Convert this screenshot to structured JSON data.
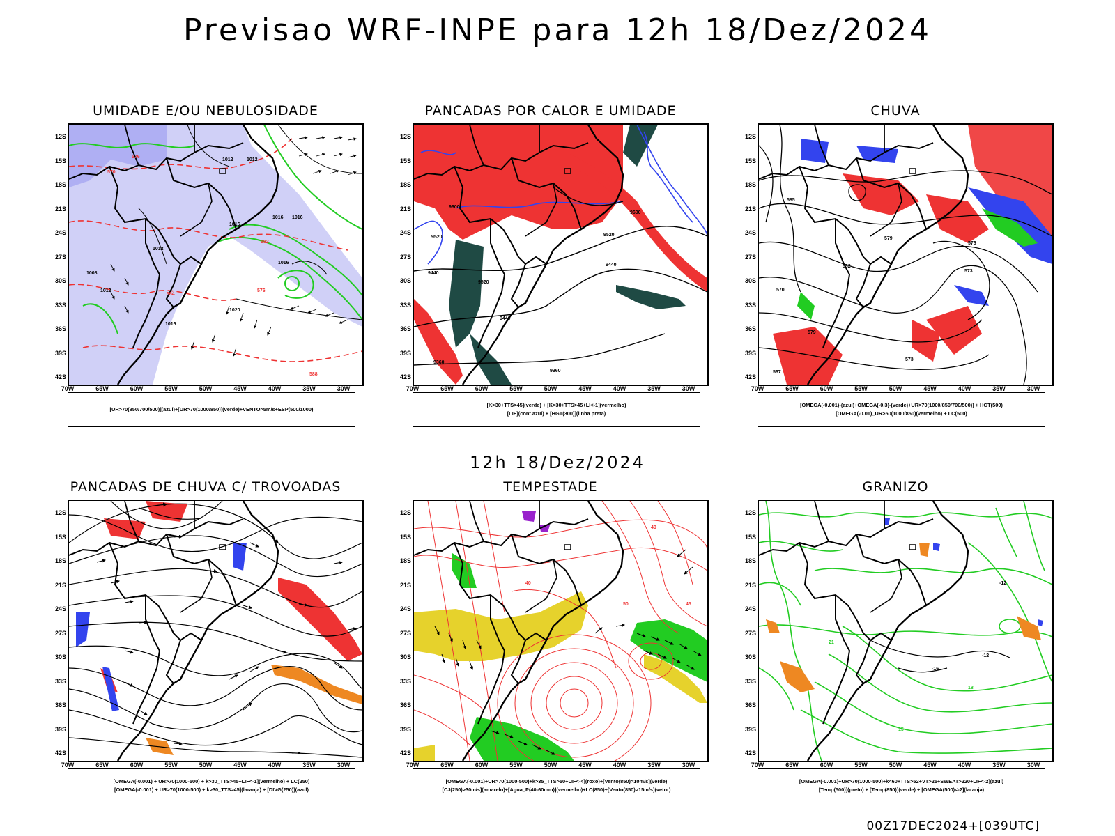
{
  "title": "Previsao WRF-INPE  para 12h 18/Dez/2024",
  "subtitle": "12h 18/Dez/2024",
  "footer": "00Z17DEC2024+[039UTC]",
  "axes": {
    "lat_labels": [
      "12S",
      "15S",
      "18S",
      "21S",
      "24S",
      "27S",
      "30S",
      "33S",
      "36S",
      "39S",
      "42S"
    ],
    "lon_labels": [
      "70W",
      "65W",
      "60W",
      "55W",
      "50W",
      "45W",
      "40W",
      "35W",
      "30W"
    ]
  },
  "colors": {
    "azul": "#3344ee",
    "verde": "#22cc22",
    "vermelho": "#ee3333",
    "amarelo": "#e6d22c",
    "laranja": "#ee8822",
    "roxo": "#9922cc",
    "shade_blue": "#9999ee",
    "dark_teal": "#1f4a44"
  },
  "panels": [
    {
      "title": "UMIDADE E/OU NEBULOSIDADE",
      "legend": [
        "[UR>70(850/700/500)](azul)+[UR>70(1000/850)](verde)+VENTO>5m/s+ESP(500/1000)"
      ],
      "contour_labels": [
        "1012",
        "1012",
        "1016",
        "1016",
        "1016",
        "1016",
        "1020",
        "1012",
        "1008",
        "1012",
        "1016",
        "576",
        "570",
        "564",
        "582",
        "576",
        "588"
      ]
    },
    {
      "title": "PANCADAS POR CALOR E UMIDADE",
      "legend": [
        "[K>30+TTS>45](verde)  +  [K>30+TTS>45+LI<-1](vermelho)",
        "[LIF](cont.azul)  +  [HGT(300)](linha preta)"
      ],
      "contour_labels": [
        "9600",
        "9520",
        "9600",
        "9520",
        "9440",
        "9440",
        "9360",
        "9360",
        "9520",
        "9440"
      ]
    },
    {
      "title": "CHUVA",
      "legend": [
        "[OMEGA(-0.001)-(azul)+OMEGA(-0.3)-(verde)+UR>70(1000/850/700/500)]  +  HGT(500)",
        "[OMEGA(-0.01)_UR>50(1000/850)(vermelho)  +  LC(500)"
      ],
      "contour_labels": [
        "585",
        "579",
        "582",
        "576",
        "573",
        "570",
        "579",
        "573",
        "567"
      ]
    },
    {
      "title": "PANCADAS DE CHUVA C/ TROVOADAS",
      "legend": [
        "[OMEGA(-0.001) + UR>70(1000-500) + k>30_TTS>45+LIF<-1](vermelho) + LC(250)",
        "[OMEGA(-0.001) + UR>70(1000-500) + k>30_TTS>45](laranja) + [DIVG(250)](azul)"
      ],
      "contour_labels": []
    },
    {
      "title": "TEMPESTADE",
      "legend": [
        "[OMEGA(-0.001)+UR>70(1000-500)+k>35_TTS>50+LIF<-4](roxo)+[Vento(850)>10m/s](verde)",
        "[CJ(250)>30m/s](amarelo)+[Agua_P(40-60mm)](vermelho)+LC(850)+[Vento(850)>15m/s](vetor)"
      ],
      "contour_labels": [
        "50",
        "45",
        "40",
        "40"
      ]
    },
    {
      "title": "GRANIZO",
      "legend": [
        "[OMEGA(-0.001)+UR>70(1000-500)+k<60+TTS>52+VT>25+SWEAT>220+LIF<-2](azul)",
        "[Temp(500)](preto)  +  [Temp(850)](verde)  +  [OMEGA(500)<-2](laranja)"
      ],
      "contour_labels": [
        "-12",
        "-12",
        "-16",
        "18",
        "15",
        "21"
      ]
    }
  ]
}
